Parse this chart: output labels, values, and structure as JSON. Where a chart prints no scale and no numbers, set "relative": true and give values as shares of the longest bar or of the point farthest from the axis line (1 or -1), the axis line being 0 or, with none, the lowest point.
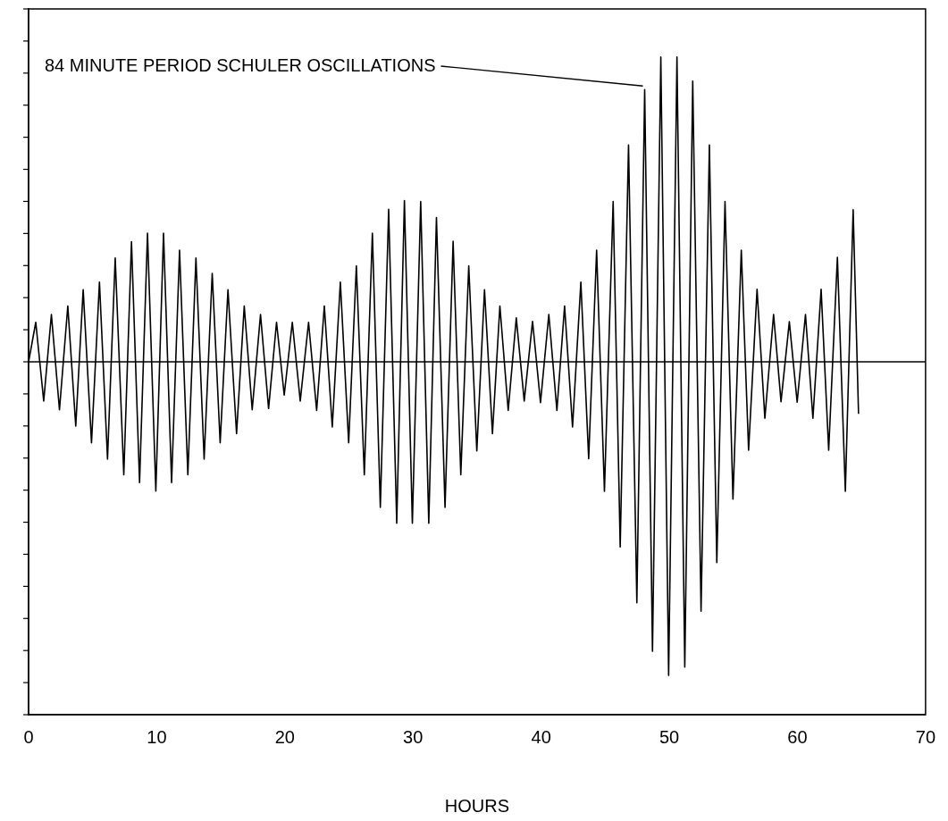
{
  "chart_data": {
    "type": "line",
    "xlabel": "HOURS",
    "relative": true,
    "xlim": [
      0,
      70
    ],
    "xticks": [
      0,
      10,
      20,
      30,
      40,
      50,
      60,
      70
    ],
    "grid": false,
    "legend": false,
    "marker": "none",
    "line_style": "solid",
    "annotations": [
      {
        "text": "84 MINUTE PERIOD SCHULER OSCILLATIONS",
        "x": 48.08,
        "y": 0.868
      }
    ],
    "series": [
      {
        "color": "#000000",
        "x": [
          0,
          0.56,
          1.18,
          1.78,
          2.41,
          3.06,
          3.68,
          4.26,
          4.91,
          5.53,
          6.16,
          6.76,
          7.43,
          8.03,
          8.66,
          9.28,
          9.93,
          10.53,
          11.16,
          11.78,
          12.43,
          13.06,
          13.7,
          14.33,
          14.95,
          15.56,
          16.23,
          16.83,
          17.45,
          18.1,
          18.73,
          19.35,
          19.95,
          20.58,
          21.2,
          21.85,
          22.48,
          23.08,
          23.7,
          24.33,
          24.98,
          25.58,
          26.2,
          26.83,
          27.45,
          28.1,
          28.73,
          29.33,
          29.95,
          30.6,
          31.23,
          31.83,
          32.5,
          33.13,
          33.73,
          34.35,
          34.98,
          35.58,
          36.2,
          36.78,
          37.43,
          38.06,
          38.68,
          39.33,
          39.95,
          40.6,
          41.23,
          41.83,
          42.45,
          43.1,
          43.71,
          44.33,
          44.94,
          45.62,
          46.17,
          46.82,
          47.47,
          48.08,
          48.69,
          49.34,
          49.95,
          50.6,
          51.21,
          51.83,
          52.48,
          53.13,
          53.71,
          54.35,
          54.97,
          55.62,
          56.19,
          56.85,
          57.46,
          58.14,
          58.72,
          59.37,
          59.98,
          60.63,
          61.21,
          61.85,
          62.44,
          63.12,
          63.74,
          64.35,
          64.77
        ],
        "values": [
          0,
          0.126,
          -0.125,
          0.151,
          -0.153,
          0.178,
          -0.205,
          0.23,
          -0.258,
          0.254,
          -0.31,
          0.331,
          -0.36,
          0.383,
          -0.385,
          0.41,
          -0.412,
          0.41,
          -0.385,
          0.356,
          -0.36,
          0.331,
          -0.31,
          0.282,
          -0.258,
          0.23,
          -0.229,
          0.178,
          -0.153,
          0.151,
          -0.149,
          0.126,
          -0.106,
          0.126,
          -0.125,
          0.126,
          -0.155,
          0.178,
          -0.208,
          0.254,
          -0.258,
          0.306,
          -0.36,
          0.41,
          -0.464,
          0.486,
          -0.515,
          0.514,
          -0.515,
          0.511,
          -0.515,
          0.46,
          -0.464,
          0.384,
          -0.36,
          0.306,
          -0.284,
          0.23,
          -0.229,
          0.178,
          -0.155,
          0.14,
          -0.125,
          0.129,
          -0.13,
          0.151,
          -0.155,
          0.178,
          -0.208,
          0.254,
          -0.309,
          0.356,
          -0.413,
          0.511,
          -0.59,
          0.691,
          -0.768,
          0.868,
          -0.923,
          0.972,
          -1,
          0.972,
          -0.973,
          0.895,
          -0.795,
          0.691,
          -0.64,
          0.511,
          -0.438,
          0.356,
          -0.282,
          0.231,
          -0.18,
          0.151,
          -0.127,
          0.128,
          -0.129,
          0.151,
          -0.18,
          0.231,
          -0.282,
          0.333,
          -0.413,
          0.485,
          -0.166
        ]
      }
    ]
  }
}
